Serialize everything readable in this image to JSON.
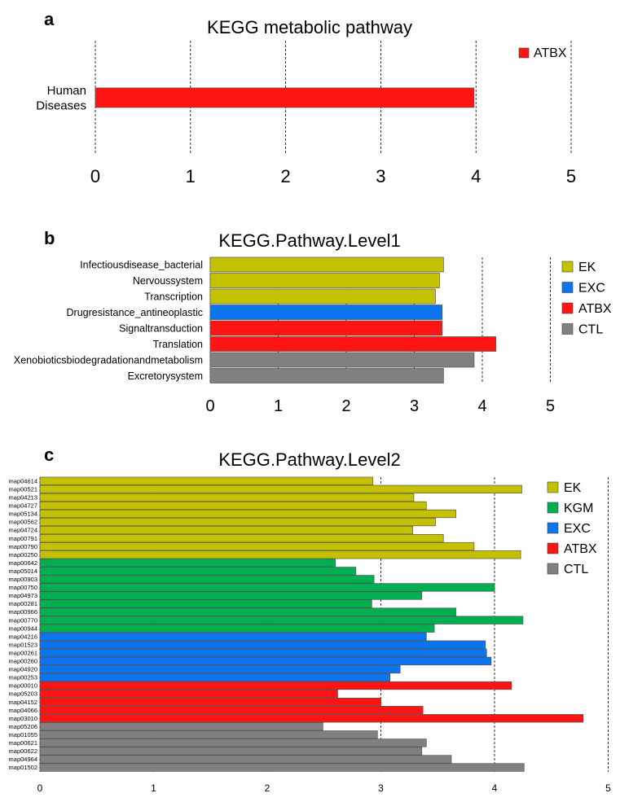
{
  "panel_labels": [
    "a",
    "b",
    "c"
  ],
  "chart_data": [
    {
      "type": "bar",
      "orientation": "horizontal",
      "title": "KEGG metabolic pathway",
      "categories": [
        "Human Diseases"
      ],
      "values": [
        3.98
      ],
      "groups": [
        "ATBX"
      ],
      "xlim": [
        0,
        5
      ],
      "xticks": [
        0,
        1,
        2,
        3,
        4,
        5
      ],
      "grid": "dashed vertical at ticks",
      "legend": {
        "position": "top-right",
        "items": [
          {
            "label": "ATBX",
            "color": "#ff1414"
          }
        ]
      }
    },
    {
      "type": "bar",
      "orientation": "horizontal",
      "title": "KEGG.Pathway.Level1",
      "categories": [
        "Infectiousdisease_bacterial",
        "Nervoussystem",
        "Transcription",
        "Drugresistance_antineoplastic",
        "Signaltransduction",
        "Translation",
        "Xenobioticsbiodegradationandmetabolism",
        "Excretorysystem"
      ],
      "values": [
        3.43,
        3.37,
        3.31,
        3.41,
        3.41,
        4.2,
        3.88,
        3.43
      ],
      "groups": [
        "EK",
        "EK",
        "EK",
        "EXC",
        "ATBX",
        "ATBX",
        "CTL",
        "CTL"
      ],
      "xlim": [
        0,
        5
      ],
      "xticks": [
        0,
        1,
        2,
        3,
        4,
        5
      ],
      "grid": "dashed vertical at ticks",
      "legend": {
        "position": "right",
        "items": [
          {
            "label": "EK",
            "color": "#c4c100"
          },
          {
            "label": "EXC",
            "color": "#0d74f0"
          },
          {
            "label": "ATBX",
            "color": "#ff1414"
          },
          {
            "label": "CTL",
            "color": "#808080"
          }
        ]
      }
    },
    {
      "type": "bar",
      "orientation": "horizontal",
      "title": "KEGG.Pathway.Level2",
      "categories": [
        "map04614",
        "map00521",
        "map04213",
        "map04727",
        "map05134",
        "map00562",
        "map04724",
        "map00791",
        "map00790",
        "map00250",
        "map00642",
        "map05014",
        "map00903",
        "map00750",
        "map04973",
        "map00281",
        "map00966",
        "map00770",
        "map00944",
        "map04216",
        "map01523",
        "map00261",
        "map00260",
        "map04920",
        "map00253",
        "map00010",
        "map05203",
        "map04152",
        "map04066",
        "map03010",
        "map05206",
        "map01055",
        "map00621",
        "map00622",
        "map04964",
        "map01502"
      ],
      "values": [
        2.93,
        4.24,
        3.29,
        3.4,
        3.66,
        3.48,
        3.28,
        3.55,
        3.82,
        4.23,
        2.6,
        2.78,
        2.94,
        4.0,
        3.36,
        2.92,
        3.66,
        4.25,
        3.47,
        3.4,
        3.92,
        3.93,
        3.97,
        3.17,
        3.08,
        4.15,
        2.62,
        3.0,
        3.37,
        4.78,
        2.49,
        2.97,
        3.4,
        3.36,
        3.62,
        4.26
      ],
      "groups": [
        "EK",
        "EK",
        "EK",
        "EK",
        "EK",
        "EK",
        "EK",
        "EK",
        "EK",
        "EK",
        "KGM",
        "KGM",
        "KGM",
        "KGM",
        "KGM",
        "KGM",
        "KGM",
        "KGM",
        "KGM",
        "EXC",
        "EXC",
        "EXC",
        "EXC",
        "EXC",
        "EXC",
        "ATBX",
        "ATBX",
        "ATBX",
        "ATBX",
        "ATBX",
        "CTL",
        "CTL",
        "CTL",
        "CTL",
        "CTL",
        "CTL"
      ],
      "xlim": [
        0,
        5
      ],
      "xticks": [
        0,
        1,
        2,
        3,
        4,
        5
      ],
      "grid": "dashed vertical at ticks",
      "legend": {
        "position": "right",
        "items": [
          {
            "label": "EK",
            "color": "#c4c100"
          },
          {
            "label": "KGM",
            "color": "#00b050"
          },
          {
            "label": "EXC",
            "color": "#0d74f0"
          },
          {
            "label": "ATBX",
            "color": "#ff1414"
          },
          {
            "label": "CTL",
            "color": "#808080"
          }
        ]
      }
    }
  ]
}
